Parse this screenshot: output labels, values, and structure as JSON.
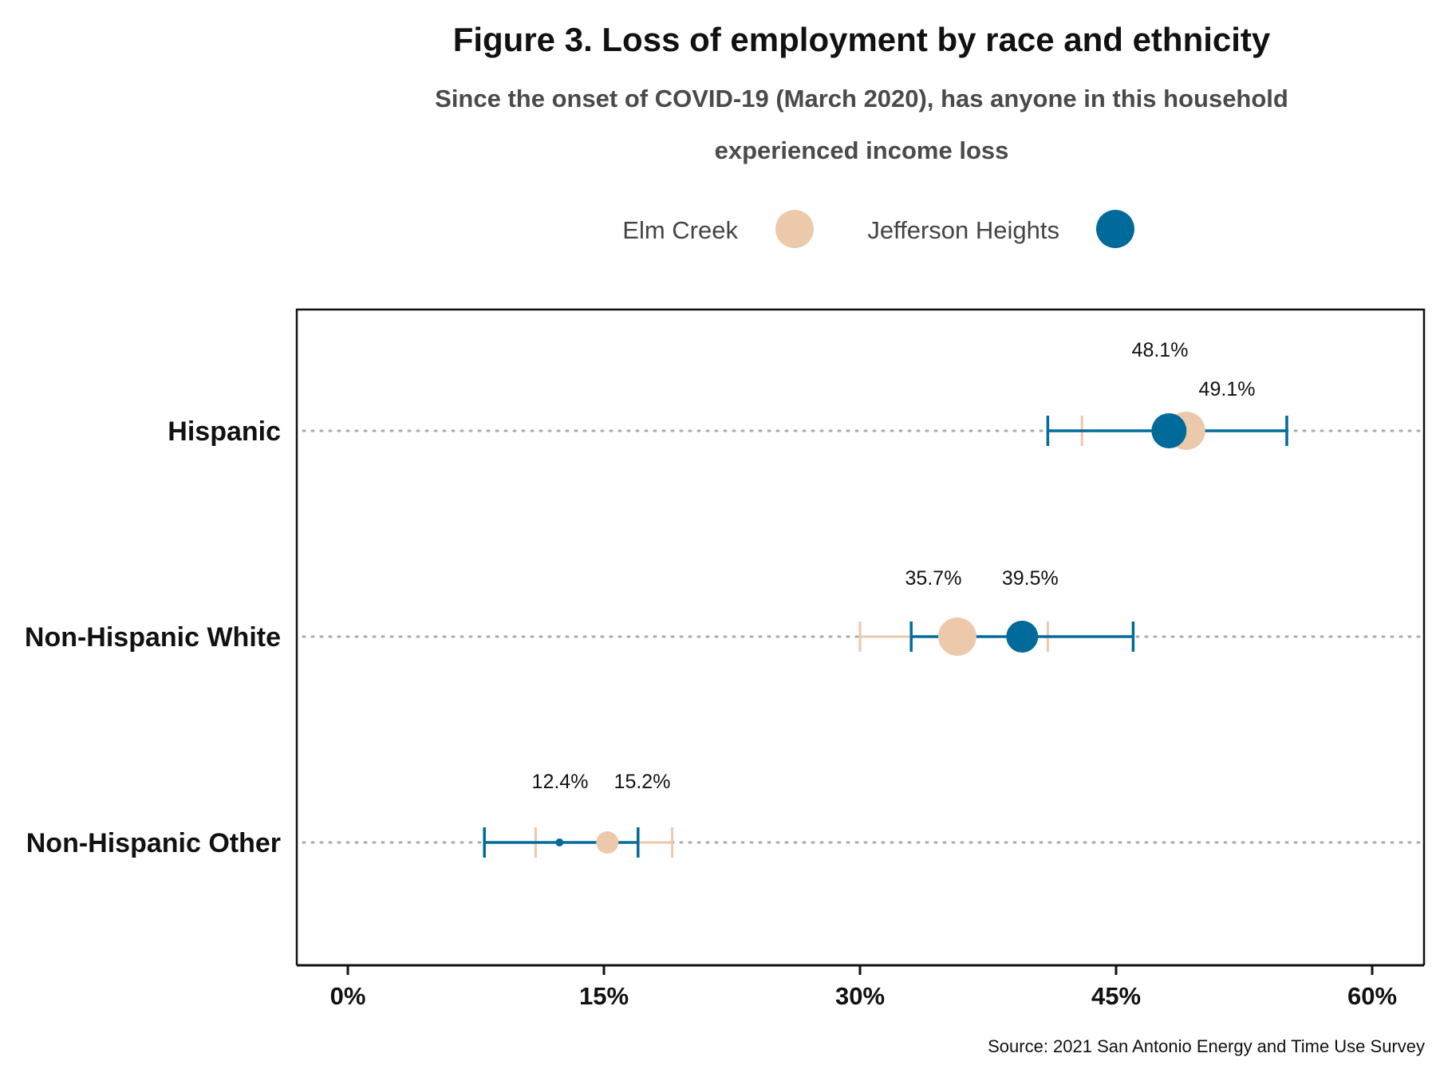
{
  "chart_data": {
    "type": "scatter",
    "title": "Figure 3. Loss of employment by race and ethnicity",
    "subtitle_lines": [
      "Since the onset of COVID-19 (March 2020), has anyone in this household",
      "experienced income loss"
    ],
    "source": "Source: 2021 San Antonio Energy and Time Use Survey",
    "categories": [
      "Hispanic",
      "Non-Hispanic White",
      "Non-Hispanic Other"
    ],
    "xlim": [
      -1.5,
      63
    ],
    "x_ticks": [
      0,
      15,
      30,
      45,
      60
    ],
    "x_tick_labels": [
      "0%",
      "15%",
      "30%",
      "45%",
      "60%"
    ],
    "grid": "dotted horizontal lines at categories",
    "legend_position": "top",
    "series": [
      {
        "name": "Elm Creek",
        "color": "#ecc9ab",
        "values": [
          49.1,
          35.7,
          15.2
        ],
        "labels": [
          "49.1%",
          "35.7%",
          "15.2%"
        ],
        "ci_low": [
          43.0,
          30.0,
          11.0
        ],
        "ci_high": [
          55.0,
          41.0,
          19.0
        ],
        "marker_size": [
          24,
          24,
          14
        ]
      },
      {
        "name": "Jefferson Heights",
        "color": "#006b9a",
        "values": [
          48.1,
          39.5,
          12.4
        ],
        "labels": [
          "48.1%",
          "39.5%",
          "12.4%"
        ],
        "ci_low": [
          41.0,
          33.0,
          8.0
        ],
        "ci_high": [
          55.0,
          46.0,
          17.0
        ],
        "marker_size": [
          22,
          20,
          5
        ]
      }
    ]
  }
}
